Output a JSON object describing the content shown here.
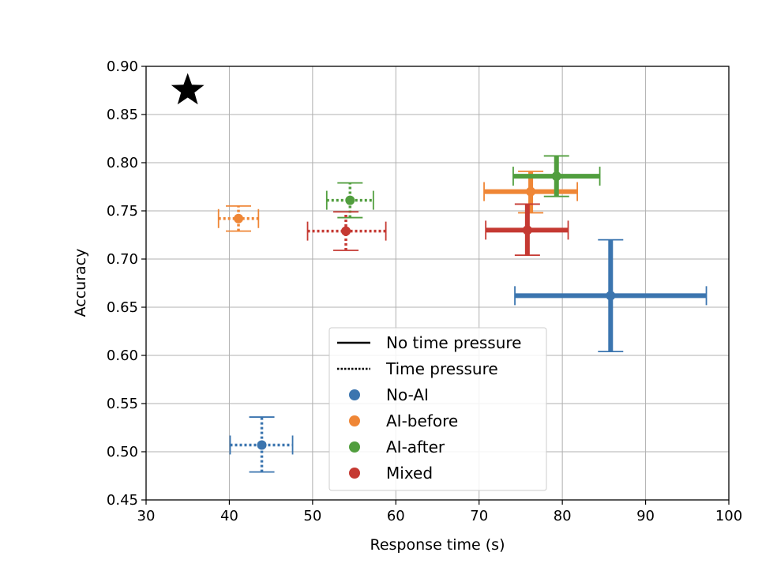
{
  "chart_data": {
    "type": "scatter",
    "title": "",
    "xlabel": "Response time (s)",
    "ylabel": "Accuracy",
    "xlim": [
      30,
      100
    ],
    "ylim": [
      0.45,
      0.9
    ],
    "xticks": [
      "30",
      "40",
      "50",
      "60",
      "70",
      "80",
      "90",
      "100"
    ],
    "yticks": [
      "0.45",
      "0.50",
      "0.55",
      "0.60",
      "0.65",
      "0.70",
      "0.75",
      "0.80",
      "0.85",
      "0.90"
    ],
    "grid": true,
    "legend_position": "lower-center",
    "legend": {
      "line_styles": [
        {
          "label": "No time pressure",
          "style": "solid"
        },
        {
          "label": "Time pressure",
          "style": "dotted"
        }
      ],
      "series": [
        {
          "label": "No-AI",
          "color": "#3b75af"
        },
        {
          "label": "AI-before",
          "color": "#ef8636"
        },
        {
          "label": "AI-after",
          "color": "#519e3e"
        },
        {
          "label": "Mixed",
          "color": "#c53932"
        }
      ]
    },
    "reference_marker": {
      "symbol": "star",
      "x": 35.0,
      "y": 0.875,
      "color": "#000000"
    },
    "series": [
      {
        "name": "No-AI",
        "color": "#3b75af",
        "points": [
          {
            "condition": "No time pressure",
            "style": "solid",
            "x": 85.8,
            "y": 0.662,
            "x_err": [
              74.3,
              97.3
            ],
            "y_err": [
              0.604,
              0.72
            ]
          },
          {
            "condition": "Time pressure",
            "style": "dotted",
            "x": 43.9,
            "y": 0.507,
            "x_err": [
              40.1,
              47.6
            ],
            "y_err": [
              0.479,
              0.536
            ]
          }
        ]
      },
      {
        "name": "AI-before",
        "color": "#ef8636",
        "points": [
          {
            "condition": "No time pressure",
            "style": "solid",
            "x": 76.2,
            "y": 0.77,
            "x_err": [
              70.6,
              81.8
            ],
            "y_err": [
              0.748,
              0.791
            ]
          },
          {
            "condition": "Time pressure",
            "style": "dotted",
            "x": 41.1,
            "y": 0.742,
            "x_err": [
              38.7,
              43.5
            ],
            "y_err": [
              0.729,
              0.755
            ]
          }
        ]
      },
      {
        "name": "AI-after",
        "color": "#519e3e",
        "points": [
          {
            "condition": "No time pressure",
            "style": "solid",
            "x": 79.3,
            "y": 0.786,
            "x_err": [
              74.1,
              84.5
            ],
            "y_err": [
              0.765,
              0.807
            ]
          },
          {
            "condition": "Time pressure",
            "style": "dotted",
            "x": 54.5,
            "y": 0.761,
            "x_err": [
              51.7,
              57.3
            ],
            "y_err": [
              0.743,
              0.779
            ]
          }
        ]
      },
      {
        "name": "Mixed",
        "color": "#c53932",
        "points": [
          {
            "condition": "No time pressure",
            "style": "solid",
            "x": 75.8,
            "y": 0.73,
            "x_err": [
              70.8,
              80.7
            ],
            "y_err": [
              0.704,
              0.757
            ]
          },
          {
            "condition": "Time pressure",
            "style": "dotted",
            "x": 54.0,
            "y": 0.729,
            "x_err": [
              49.4,
              58.8
            ],
            "y_err": [
              0.709,
              0.749
            ]
          }
        ]
      }
    ]
  }
}
